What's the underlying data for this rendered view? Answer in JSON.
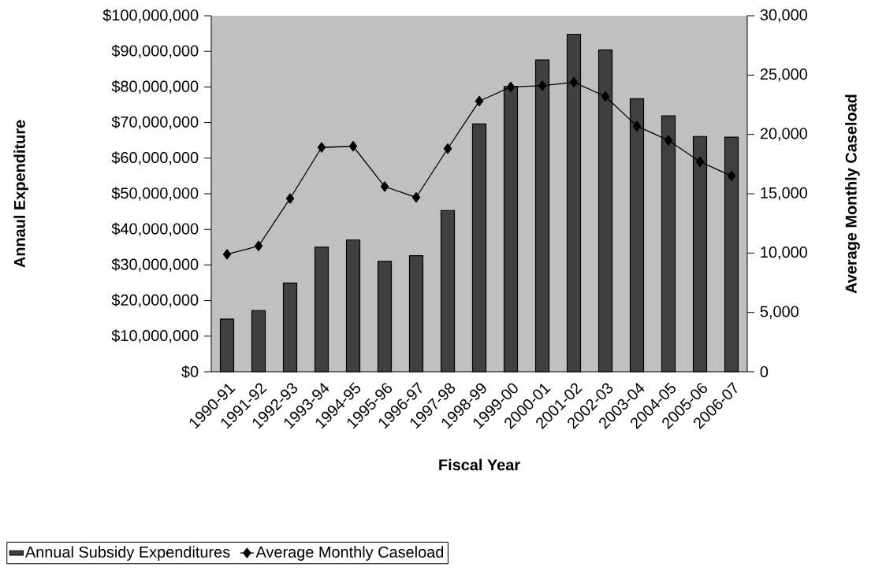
{
  "chart_data": {
    "type": "bar",
    "categories": [
      "1990-91",
      "1991-92",
      "1992-93",
      "1993-94",
      "1994-95",
      "1995-96",
      "1996-97",
      "1997-98",
      "1998-99",
      "1999-00",
      "2000-01",
      "2001-02",
      "2002-03",
      "2003-04",
      "2004-05",
      "2005-06",
      "2006-07"
    ],
    "series": [
      {
        "name": "Annual Subsidy Expenditures",
        "color": "#404040",
        "values": [
          14800000,
          17200000,
          24900000,
          35000000,
          37000000,
          31000000,
          32600000,
          45300000,
          69600000,
          80100000,
          87600000,
          94800000,
          90400000,
          76700000,
          71900000,
          66100000,
          65900000
        ]
      },
      {
        "name": "Average Monthly Caseload",
        "type": "line",
        "axis": "y2",
        "color": "#000000",
        "marker": "diamond",
        "values": [
          9900,
          10600,
          14600,
          18900,
          19000,
          15600,
          14700,
          18800,
          22800,
          24000,
          24100,
          24400,
          23200,
          20700,
          19500,
          17700,
          16500
        ]
      }
    ],
    "xlabel": "Fiscal Year",
    "ylabel": "Annaul Expenditure",
    "y2label": "Average Monthly Caseload",
    "ylim": [
      0,
      100000000
    ],
    "yticks": [
      {
        "value": 0,
        "label": "$0"
      },
      {
        "value": 10000000,
        "label": "$10,000,000"
      },
      {
        "value": 20000000,
        "label": "$20,000,000"
      },
      {
        "value": 30000000,
        "label": "$30,000,000"
      },
      {
        "value": 40000000,
        "label": "$40,000,000"
      },
      {
        "value": 50000000,
        "label": "$50,000,000"
      },
      {
        "value": 60000000,
        "label": "$60,000,000"
      },
      {
        "value": 70000000,
        "label": "$70,000,000"
      },
      {
        "value": 80000000,
        "label": "$80,000,000"
      },
      {
        "value": 90000000,
        "label": "$90,000,000"
      },
      {
        "value": 100000000,
        "label": "$100,000,000"
      }
    ],
    "y2lim": [
      0,
      30000
    ],
    "y2ticks": [
      0,
      {
        "value": 5000,
        "label": "5,000"
      },
      {
        "value": 10000,
        "label": "10,000"
      },
      {
        "value": 15000,
        "label": "15,000"
      },
      {
        "value": 20000,
        "label": "20,000"
      },
      {
        "value": 25000,
        "label": "25,000"
      },
      {
        "value": 30000,
        "label": "30,000"
      }
    ],
    "legend": "bottom",
    "grid": false
  }
}
